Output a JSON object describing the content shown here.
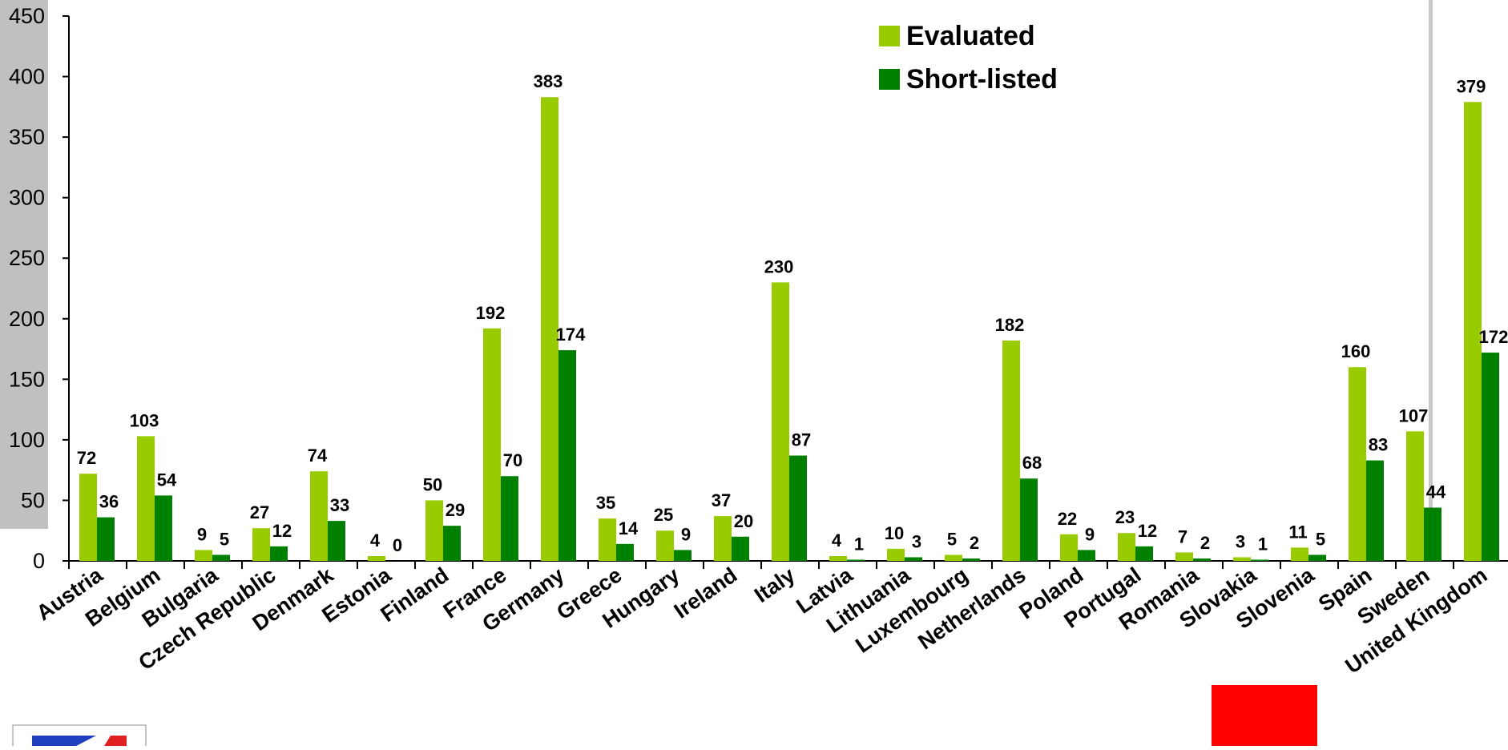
{
  "chart_data": {
    "type": "bar",
    "categories": [
      "Austria",
      "Belgium",
      "Bulgaria",
      "Czech Republic",
      "Denmark",
      "Estonia",
      "Finland",
      "France",
      "Germany",
      "Greece",
      "Hungary",
      "Ireland",
      "Italy",
      "Latvia",
      "Lithuania",
      "Luxembourg",
      "Netherlands",
      "Poland",
      "Portugal",
      "Romania",
      "Slovakia",
      "Slovenia",
      "Spain",
      "Sweden",
      "United Kingdom"
    ],
    "series": [
      {
        "name": "Evaluated",
        "color": "#99cc00",
        "values": [
          72,
          103,
          9,
          27,
          74,
          4,
          50,
          192,
          383,
          35,
          25,
          37,
          230,
          4,
          10,
          5,
          182,
          22,
          23,
          7,
          3,
          11,
          160,
          107,
          379
        ]
      },
      {
        "name": "Short-listed",
        "color": "#008000",
        "values": [
          36,
          54,
          5,
          12,
          33,
          0,
          29,
          70,
          174,
          14,
          9,
          20,
          87,
          1,
          3,
          2,
          68,
          9,
          12,
          2,
          1,
          5,
          83,
          44,
          172
        ]
      }
    ],
    "yticks": [
      "0",
      "50",
      "100",
      "150",
      "200",
      "250",
      "300",
      "350",
      "400",
      "450"
    ],
    "ylim": [
      0,
      450
    ],
    "legend_position": "top-center",
    "grid": false
  }
}
